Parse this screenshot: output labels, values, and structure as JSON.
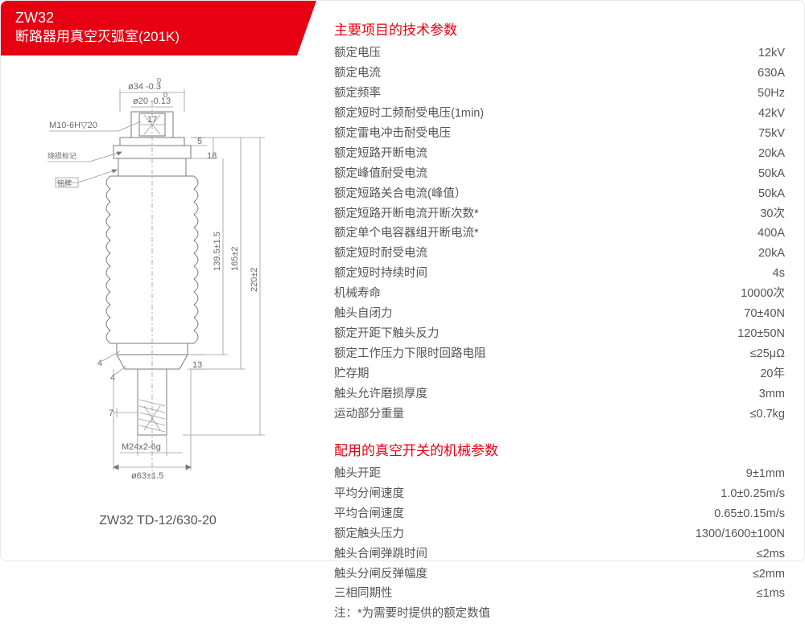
{
  "header": {
    "code": "ZW32",
    "subtitle": "断路器用真空灭弧室(201K)"
  },
  "colors": {
    "accent": "#e60012",
    "text": "#555555",
    "line": "#7a7a7a",
    "bg": "#ffffff"
  },
  "diagram": {
    "model_label": "ZW32 TD-12/630-20",
    "annotations": {
      "top_dia": "ø34 -0.3",
      "top_dia_sup": "0",
      "inner_dia": "ø20 -0.13",
      "inner_dia_sup": "0",
      "width_17": "17",
      "thread_top": "M10-6H▽20",
      "mark_burn": "烧损标记",
      "nameplate": "铭牌",
      "dim_5": "5",
      "dim_18": "18",
      "dim_139_5": "139.5±1.5",
      "dim_165": "165±2",
      "dim_220": "220±2",
      "dim_4": "4",
      "dim_4b": "4",
      "dim_13": "13",
      "dim_7": "7",
      "thread_bot": "M24x2-6g",
      "bot_dia": "ø63±1.5"
    }
  },
  "section1": {
    "title": "主要项目的技术参数",
    "rows": [
      {
        "label": "额定电压",
        "value": "12kV"
      },
      {
        "label": "额定电流",
        "value": "630A"
      },
      {
        "label": "额定频率",
        "value": "50Hz"
      },
      {
        "label": "额定短时工频耐受电压(1min)",
        "value": "42kV"
      },
      {
        "label": "额定雷电冲击耐受电压",
        "value": "75kV"
      },
      {
        "label": "额定短路开断电流",
        "value": "20kA"
      },
      {
        "label": "额定峰值耐受电流",
        "value": "50kA"
      },
      {
        "label": "额定短路关合电流(峰值）",
        "value": "50kA"
      },
      {
        "label": "额定短路开断电流开断次数*",
        "value": "30次"
      },
      {
        "label": "额定单个电容器组开断电流*",
        "value": "400A"
      },
      {
        "label": "额定短时耐受电流",
        "value": "20kA"
      },
      {
        "label": "额定短时持续时间",
        "value": "4s"
      },
      {
        "label": "机械寿命",
        "value": "10000次"
      },
      {
        "label": "触头自闭力",
        "value": "70±40N"
      },
      {
        "label": "额定开距下触头反力",
        "value": "120±50N"
      },
      {
        "label": "额定工作压力下限时回路电阻",
        "value": "≤25μΩ"
      },
      {
        "label": "贮存期",
        "value": "20年"
      },
      {
        "label": "触头允许磨损厚度",
        "value": "3mm"
      },
      {
        "label": "运动部分重量",
        "value": "≤0.7kg"
      }
    ]
  },
  "section2": {
    "title": "配用的真空开关的机械参数",
    "rows": [
      {
        "label": "触头开距",
        "value": "9±1mm"
      },
      {
        "label": "平均分闸速度",
        "value": "1.0±0.25m/s"
      },
      {
        "label": "平均合闸速度",
        "value": "0.65±0.15m/s"
      },
      {
        "label": "额定触头压力",
        "value": "1300/1600±100N"
      },
      {
        "label": "触头合闸弹跳时间",
        "value": "≤2ms"
      },
      {
        "label": "触头分闸反弹幅度",
        "value": "≤2mm"
      },
      {
        "label": "三相同期性",
        "value": "≤1ms"
      }
    ],
    "note": "注：*为需要时提供的额定数值"
  }
}
